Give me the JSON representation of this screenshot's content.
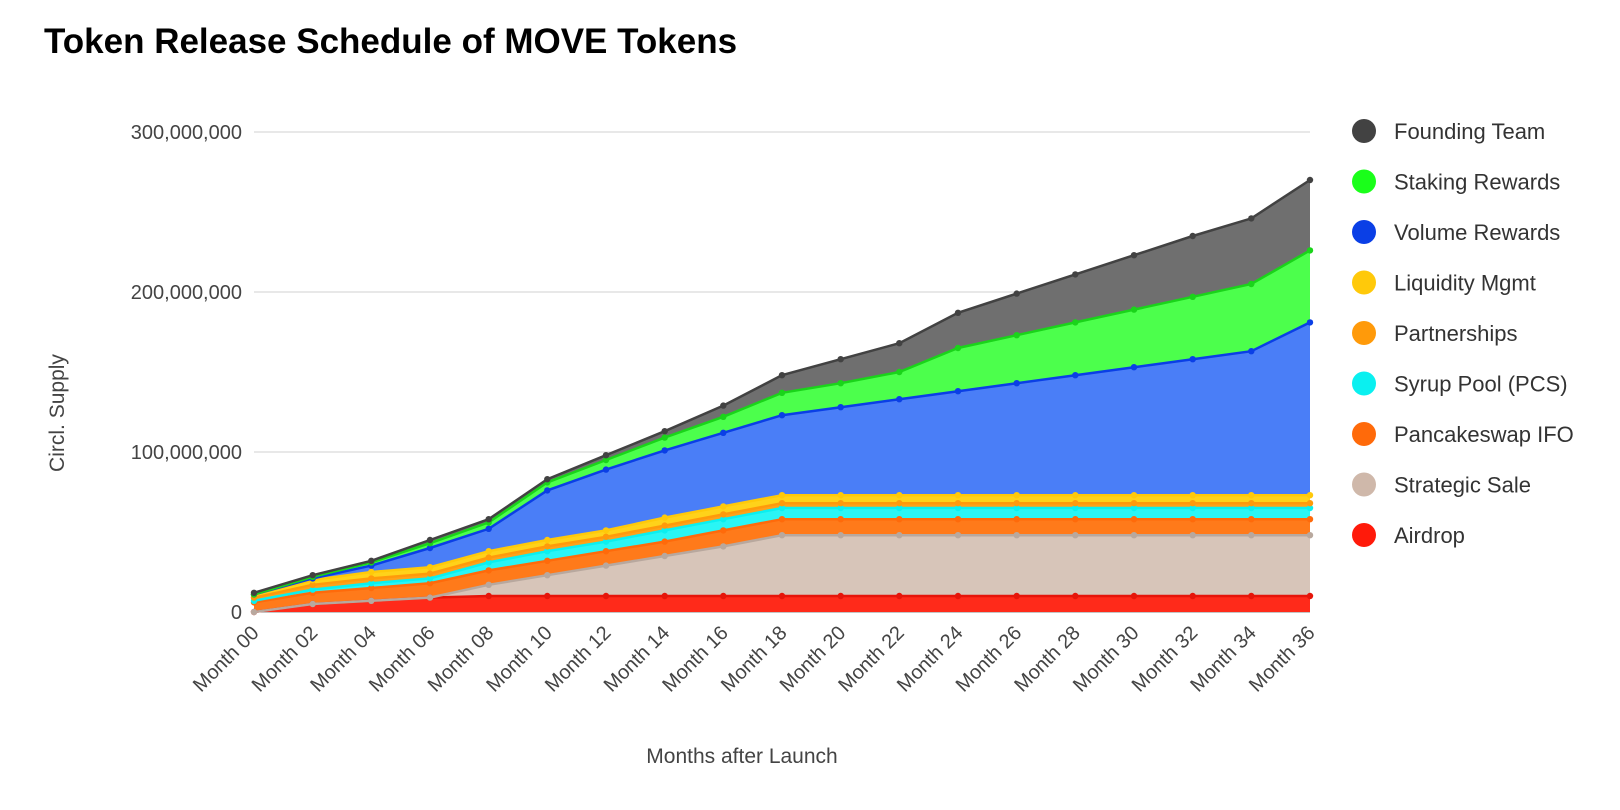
{
  "chart_data": {
    "type": "area",
    "stacked": true,
    "title": "Token Release Schedule of MOVE Tokens",
    "xlabel": "Months after Launch",
    "ylabel": "Circl. Supply",
    "ylim": [
      0,
      300000000
    ],
    "yticks": [
      0,
      100000000,
      200000000,
      300000000
    ],
    "ytick_labels": [
      "0",
      "100,000,000",
      "200,000,000",
      "300,000,000"
    ],
    "grid": true,
    "legend_position": "right",
    "categories": [
      "Month 00",
      "Month 02",
      "Month 04",
      "Month 06",
      "Month 08",
      "Month 10",
      "Month 12",
      "Month 14",
      "Month 16",
      "Month 18",
      "Month 20",
      "Month 22",
      "Month 24",
      "Month 26",
      "Month 28",
      "Month 30",
      "Month 32",
      "Month 34",
      "Month 36"
    ],
    "series": [
      {
        "name": "Airdrop",
        "color": "#ff2a1a",
        "values": [
          0,
          5000000,
          7000000,
          9000000,
          10000000,
          10000000,
          10000000,
          10000000,
          10000000,
          10000000,
          10000000,
          10000000,
          10000000,
          10000000,
          10000000,
          10000000,
          10000000,
          10000000,
          10000000
        ]
      },
      {
        "name": "Strategic Sale",
        "color": "#d7c5b9",
        "values": [
          0,
          0,
          0,
          0,
          7000000,
          13000000,
          19000000,
          25000000,
          31000000,
          38000000,
          38000000,
          38000000,
          38000000,
          38000000,
          38000000,
          38000000,
          38000000,
          38000000,
          38000000
        ]
      },
      {
        "name": "Pancakeswap IFO",
        "color": "#ff7a1a",
        "values": [
          6000000,
          7000000,
          8000000,
          9000000,
          9000000,
          9000000,
          9000000,
          9000000,
          10000000,
          10000000,
          10000000,
          10000000,
          10000000,
          10000000,
          10000000,
          10000000,
          10000000,
          10000000,
          10000000
        ]
      },
      {
        "name": "Syrup Pool (PCS)",
        "color": "#2af5f5",
        "values": [
          1000000,
          2000000,
          3000000,
          3000000,
          5000000,
          6000000,
          6000000,
          7000000,
          7000000,
          7000000,
          7000000,
          7000000,
          7000000,
          7000000,
          7000000,
          7000000,
          7000000,
          7000000,
          7000000
        ]
      },
      {
        "name": "Partnerships",
        "color": "#ffa21a",
        "values": [
          2000000,
          3000000,
          3000000,
          3000000,
          3000000,
          3000000,
          3000000,
          3000000,
          3000000,
          3000000,
          3000000,
          3000000,
          3000000,
          3000000,
          3000000,
          3000000,
          3000000,
          3000000,
          3000000
        ]
      },
      {
        "name": "Liquidity Mgmt",
        "color": "#ffd21a",
        "values": [
          2000000,
          3000000,
          4000000,
          4000000,
          4000000,
          4000000,
          4000000,
          5000000,
          5000000,
          5000000,
          5000000,
          5000000,
          5000000,
          5000000,
          5000000,
          5000000,
          5000000,
          5000000,
          5000000
        ]
      },
      {
        "name": "Volume Rewards",
        "color": "#4a7ef7",
        "values": [
          0,
          1000000,
          4000000,
          12000000,
          14000000,
          31000000,
          38000000,
          42000000,
          46000000,
          50000000,
          55000000,
          60000000,
          65000000,
          70000000,
          75000000,
          80000000,
          85000000,
          90000000,
          108000000
        ]
      },
      {
        "name": "Staking Rewards",
        "color": "#4cff4c",
        "values": [
          0,
          1000000,
          2000000,
          3000000,
          4000000,
          5000000,
          6000000,
          8000000,
          10000000,
          14000000,
          15000000,
          17000000,
          27000000,
          30000000,
          33000000,
          36000000,
          39000000,
          42000000,
          45000000
        ]
      },
      {
        "name": "Founding Team",
        "color": "#6f6f6f",
        "values": [
          1000000,
          1000000,
          1000000,
          2000000,
          2000000,
          2000000,
          3000000,
          4000000,
          7000000,
          11000000,
          15000000,
          18000000,
          22000000,
          26000000,
          30000000,
          34000000,
          38000000,
          41000000,
          44000000
        ]
      }
    ],
    "legend_order": [
      "Founding Team",
      "Staking Rewards",
      "Volume Rewards",
      "Liquidity Mgmt",
      "Partnerships",
      "Syrup Pool (PCS)",
      "Pancakeswap IFO",
      "Strategic Sale",
      "Airdrop"
    ],
    "legend_marker_colors": {
      "Founding Team": "#424242",
      "Staking Rewards": "#1aff1a",
      "Volume Rewards": "#0a3fe6",
      "Liquidity Mgmt": "#ffc90a",
      "Partnerships": "#ff9a0a",
      "Syrup Pool (PCS)": "#0af0f0",
      "Pancakeswap IFO": "#ff6a0a",
      "Strategic Sale": "#cfb8aa",
      "Airdrop": "#ff1a0a"
    },
    "line_colors": {
      "Founding Team": "#424242",
      "Staking Rewards": "#1ad41a",
      "Volume Rewards": "#0a3fe6",
      "Liquidity Mgmt": "#ffc90a",
      "Partnerships": "#ff9a0a",
      "Syrup Pool (PCS)": "#0af0f0",
      "Pancakeswap IFO": "#ff6a0a",
      "Strategic Sale": "#b8a89e",
      "Airdrop": "#e6150a"
    }
  }
}
